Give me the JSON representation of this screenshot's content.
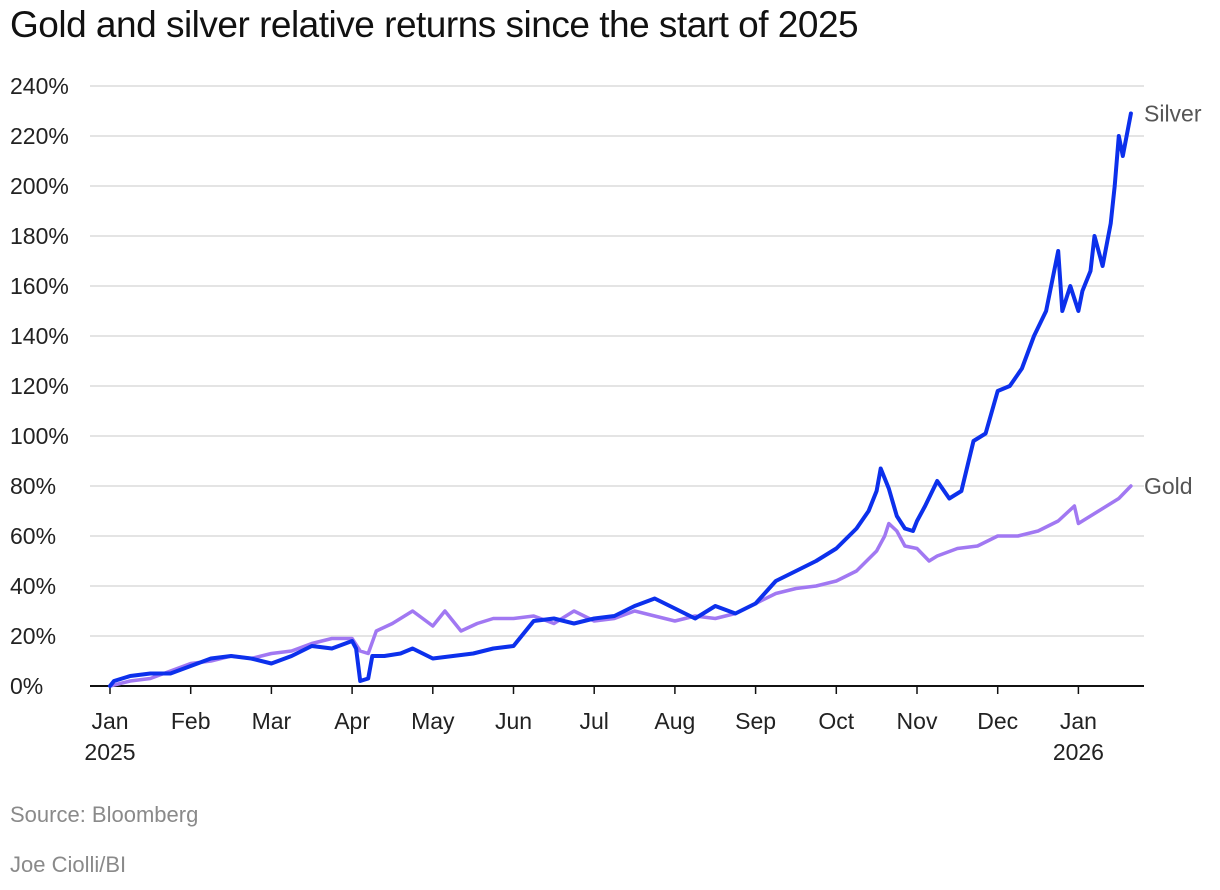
{
  "chart_data": {
    "type": "line",
    "title": "Gold and silver relative returns since the start of 2025",
    "xlabel": "",
    "ylabel": "",
    "ylim": [
      0,
      240
    ],
    "yticks": [
      0,
      20,
      40,
      60,
      80,
      100,
      120,
      140,
      160,
      180,
      200,
      220,
      240
    ],
    "ytick_suffix": "%",
    "xlim": [
      0,
      12.65
    ],
    "grid": "horizontal",
    "legend": "direct labels at line ends (right)",
    "x_ticks": [
      {
        "x": 0,
        "label": "Jan",
        "year": "2025"
      },
      {
        "x": 1,
        "label": "Feb",
        "year": ""
      },
      {
        "x": 2,
        "label": "Mar",
        "year": ""
      },
      {
        "x": 3,
        "label": "Apr",
        "year": ""
      },
      {
        "x": 4,
        "label": "May",
        "year": ""
      },
      {
        "x": 5,
        "label": "Jun",
        "year": ""
      },
      {
        "x": 6,
        "label": "Jul",
        "year": ""
      },
      {
        "x": 7,
        "label": "Aug",
        "year": ""
      },
      {
        "x": 8,
        "label": "Sep",
        "year": ""
      },
      {
        "x": 9,
        "label": "Oct",
        "year": ""
      },
      {
        "x": 10,
        "label": "Nov",
        "year": ""
      },
      {
        "x": 11,
        "label": "Dec",
        "year": ""
      },
      {
        "x": 12,
        "label": "Jan",
        "year": "2026"
      }
    ],
    "series": [
      {
        "name": "Gold",
        "label": "Gold",
        "color": "#a178f2",
        "x": [
          0,
          0.25,
          0.5,
          0.75,
          1.0,
          1.25,
          1.5,
          1.75,
          2.0,
          2.25,
          2.5,
          2.75,
          3.0,
          3.1,
          3.2,
          3.3,
          3.5,
          3.75,
          4.0,
          4.15,
          4.35,
          4.55,
          4.75,
          5.0,
          5.25,
          5.5,
          5.75,
          6.0,
          6.25,
          6.5,
          6.75,
          7.0,
          7.25,
          7.5,
          7.75,
          8.0,
          8.25,
          8.5,
          8.75,
          9.0,
          9.25,
          9.5,
          9.6,
          9.65,
          9.75,
          9.85,
          10.0,
          10.15,
          10.25,
          10.5,
          10.75,
          11.0,
          11.25,
          11.5,
          11.75,
          11.95,
          12.0,
          12.25,
          12.5,
          12.65
        ],
        "values": [
          0,
          2,
          3,
          6,
          9,
          10,
          12,
          11,
          13,
          14,
          17,
          19,
          19,
          14,
          13,
          22,
          25,
          30,
          24,
          30,
          22,
          25,
          27,
          27,
          28,
          25,
          30,
          26,
          27,
          30,
          28,
          26,
          28,
          27,
          29,
          33,
          37,
          39,
          40,
          42,
          46,
          54,
          60,
          65,
          62,
          56,
          55,
          50,
          52,
          55,
          56,
          60,
          60,
          62,
          66,
          72,
          65,
          70,
          75,
          80
        ]
      },
      {
        "name": "Silver",
        "label": "Silver",
        "color": "#0c30ec",
        "x": [
          0,
          0.05,
          0.25,
          0.5,
          0.75,
          1.0,
          1.25,
          1.5,
          1.75,
          2.0,
          2.25,
          2.5,
          2.75,
          3.0,
          3.05,
          3.1,
          3.2,
          3.25,
          3.4,
          3.6,
          3.75,
          4.0,
          4.25,
          4.5,
          4.75,
          5.0,
          5.25,
          5.5,
          5.75,
          6.0,
          6.25,
          6.5,
          6.75,
          7.0,
          7.25,
          7.5,
          7.75,
          8.0,
          8.25,
          8.5,
          8.75,
          9.0,
          9.25,
          9.4,
          9.5,
          9.55,
          9.65,
          9.75,
          9.85,
          9.95,
          10.0,
          10.1,
          10.25,
          10.4,
          10.55,
          10.7,
          10.85,
          11.0,
          11.15,
          11.3,
          11.45,
          11.6,
          11.75,
          11.8,
          11.9,
          12.0,
          12.05,
          12.15,
          12.2,
          12.3,
          12.4,
          12.45,
          12.5,
          12.55,
          12.65
        ],
        "values": [
          0,
          2,
          4,
          5,
          5,
          8,
          11,
          12,
          11,
          9,
          12,
          16,
          15,
          18,
          15,
          2,
          3,
          12,
          12,
          13,
          15,
          11,
          12,
          13,
          15,
          16,
          26,
          27,
          25,
          27,
          28,
          32,
          35,
          31,
          27,
          32,
          29,
          33,
          42,
          46,
          50,
          55,
          63,
          70,
          78,
          87,
          79,
          68,
          63,
          62,
          66,
          72,
          82,
          75,
          78,
          98,
          101,
          118,
          120,
          127,
          140,
          150,
          174,
          150,
          160,
          150,
          158,
          166,
          180,
          168,
          185,
          200,
          220,
          212,
          229
        ]
      }
    ]
  },
  "source": "Source: Bloomberg",
  "credit": "Joe Ciolli/BI"
}
